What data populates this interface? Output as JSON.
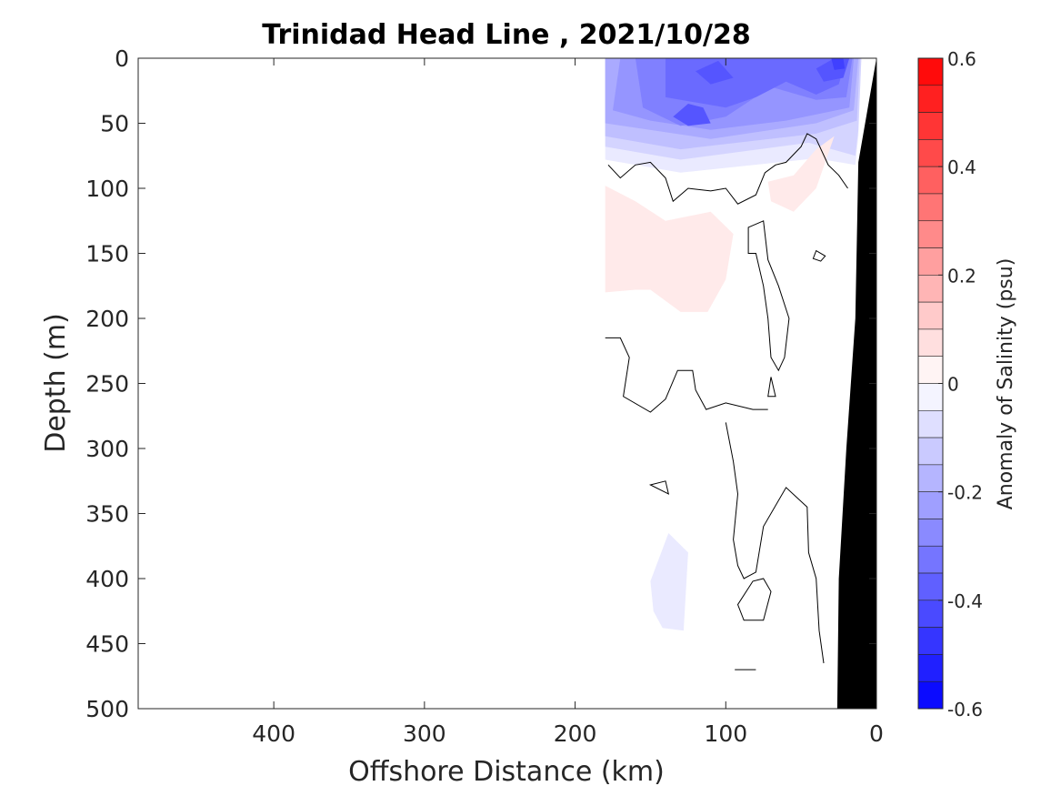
{
  "chart_data": {
    "type": "heatmap",
    "subtype": "filled-contour-section",
    "title": "Trinidad Head Line , 2021/10/28",
    "xlabel": "Offshore Distance (km)",
    "ylabel": "Depth (m)",
    "xlim": [
      490,
      0
    ],
    "ylim": [
      500,
      0
    ],
    "x_reversed": true,
    "y_reversed": true,
    "xticks": [
      400,
      300,
      200,
      100,
      0
    ],
    "xtick_labels": [
      "400",
      "300",
      "200",
      "100",
      "0"
    ],
    "yticks": [
      0,
      50,
      100,
      150,
      200,
      250,
      300,
      350,
      400,
      450,
      500
    ],
    "ytick_labels": [
      "0",
      "50",
      "100",
      "150",
      "200",
      "250",
      "300",
      "350",
      "400",
      "450",
      "500"
    ],
    "colorbar": {
      "label": "Anomaly of Salinity (psu)",
      "lim": [
        -0.6,
        0.6
      ],
      "step": 0.05,
      "ticks": [
        0.6,
        0.4,
        0.2,
        0,
        -0.2,
        -0.4,
        -0.6
      ],
      "tick_labels": [
        "0.6",
        "0.4",
        "0.2",
        "0",
        "-0.2",
        "-0.4",
        "-0.6"
      ],
      "colormap": "blue-white-red"
    },
    "data_extent_km": [
      0,
      180
    ],
    "bathymetry": [
      [
        0,
        0
      ],
      [
        12,
        80
      ],
      [
        14,
        200
      ],
      [
        20,
        300
      ],
      [
        25,
        400
      ],
      [
        26,
        500
      ],
      [
        0,
        500
      ]
    ],
    "regions": [
      {
        "level": -0.05,
        "pts": [
          [
            180,
            0
          ],
          [
            10,
            0
          ],
          [
            12,
            60
          ],
          [
            14,
            82
          ],
          [
            40,
            77
          ],
          [
            130,
            88
          ],
          [
            180,
            78
          ]
        ]
      },
      {
        "level": -0.1,
        "pts": [
          [
            180,
            0
          ],
          [
            10,
            0
          ],
          [
            12,
            55
          ],
          [
            14,
            75
          ],
          [
            45,
            65
          ],
          [
            130,
            78
          ],
          [
            180,
            68
          ]
        ]
      },
      {
        "level": -0.15,
        "pts": [
          [
            180,
            0
          ],
          [
            11,
            0
          ],
          [
            13,
            48
          ],
          [
            40,
            58
          ],
          [
            130,
            70
          ],
          [
            180,
            60
          ]
        ]
      },
      {
        "level": -0.2,
        "pts": [
          [
            180,
            0
          ],
          [
            12,
            0
          ],
          [
            15,
            40
          ],
          [
            40,
            50
          ],
          [
            110,
            62
          ],
          [
            180,
            50
          ]
        ]
      },
      {
        "level": -0.25,
        "pts": [
          [
            170,
            0
          ],
          [
            15,
            0
          ],
          [
            18,
            38
          ],
          [
            60,
            48
          ],
          [
            110,
            55
          ],
          [
            150,
            48
          ],
          [
            175,
            40
          ]
        ]
      },
      {
        "level": -0.3,
        "pts": [
          [
            160,
            0
          ],
          [
            16,
            0
          ],
          [
            20,
            30
          ],
          [
            40,
            32
          ],
          [
            70,
            22
          ],
          [
            100,
            45
          ],
          [
            130,
            52
          ],
          [
            155,
            38
          ]
        ]
      },
      {
        "level": -0.35,
        "pts": [
          [
            140,
            0
          ],
          [
            20,
            0
          ],
          [
            25,
            20
          ],
          [
            40,
            28
          ],
          [
            60,
            18
          ],
          [
            80,
            30
          ],
          [
            100,
            38
          ],
          [
            140,
            30
          ]
        ]
      },
      {
        "level": -0.4,
        "pts": [
          [
            135,
            45
          ],
          [
            125,
            35
          ],
          [
            115,
            38
          ],
          [
            110,
            50
          ],
          [
            125,
            52
          ]
        ]
      },
      {
        "level": -0.4,
        "pts": [
          [
            120,
            10
          ],
          [
            105,
            2
          ],
          [
            95,
            15
          ],
          [
            110,
            20
          ]
        ]
      },
      {
        "level": -0.4,
        "pts": [
          [
            40,
            8
          ],
          [
            28,
            0
          ],
          [
            18,
            0
          ],
          [
            22,
            15
          ],
          [
            35,
            18
          ]
        ]
      },
      {
        "level": -0.45,
        "pts": [
          [
            30,
            0
          ],
          [
            22,
            0
          ],
          [
            21,
            8
          ],
          [
            28,
            9
          ]
        ]
      },
      {
        "level": -0.05,
        "pts": [
          [
            150,
            402
          ],
          [
            138,
            365
          ],
          [
            125,
            380
          ],
          [
            128,
            440
          ],
          [
            142,
            438
          ],
          [
            148,
            425
          ]
        ]
      },
      {
        "level": 0.05,
        "pts": [
          [
            180,
            98
          ],
          [
            160,
            110
          ],
          [
            140,
            125
          ],
          [
            110,
            118
          ],
          [
            95,
            135
          ],
          [
            100,
            170
          ],
          [
            112,
            195
          ],
          [
            130,
            195
          ],
          [
            150,
            178
          ],
          [
            160,
            178
          ],
          [
            180,
            180
          ]
        ]
      },
      {
        "level": 0.05,
        "pts": [
          [
            72,
            95
          ],
          [
            70,
            110
          ],
          [
            55,
            118
          ],
          [
            40,
            100
          ],
          [
            28,
            60
          ],
          [
            40,
            70
          ],
          [
            55,
            90
          ]
        ]
      }
    ],
    "zero_contours": [
      {
        "closed": false,
        "pts": [
          [
            178,
            82
          ],
          [
            170,
            92
          ],
          [
            160,
            82
          ],
          [
            150,
            80
          ],
          [
            140,
            92
          ],
          [
            135,
            110
          ],
          [
            125,
            100
          ],
          [
            110,
            102
          ],
          [
            100,
            100
          ],
          [
            92,
            112
          ],
          [
            80,
            105
          ],
          [
            74,
            88
          ],
          [
            67,
            82
          ],
          [
            60,
            80
          ],
          [
            50,
            68
          ],
          [
            46,
            58
          ],
          [
            40,
            62
          ],
          [
            32,
            82
          ],
          [
            25,
            90
          ],
          [
            19,
            100
          ]
        ]
      },
      {
        "closed": true,
        "pts": [
          [
            85,
            130
          ],
          [
            75,
            125
          ],
          [
            72,
            155
          ],
          [
            65,
            175
          ],
          [
            58,
            200
          ],
          [
            61,
            230
          ],
          [
            65,
            240
          ],
          [
            70,
            230
          ],
          [
            72,
            200
          ],
          [
            75,
            175
          ],
          [
            80,
            150
          ],
          [
            85,
            150
          ]
        ]
      },
      {
        "closed": false,
        "pts": [
          [
            180,
            215
          ],
          [
            170,
            215
          ],
          [
            164,
            230
          ],
          [
            168,
            260
          ],
          [
            150,
            272
          ],
          [
            140,
            262
          ],
          [
            132,
            240
          ],
          [
            122,
            240
          ],
          [
            120,
            255
          ],
          [
            113,
            270
          ],
          [
            100,
            265
          ],
          [
            82,
            270
          ],
          [
            72,
            270
          ]
        ]
      },
      {
        "closed": true,
        "pts": [
          [
            72,
            260
          ],
          [
            70,
            245
          ],
          [
            67,
            260
          ]
        ]
      },
      {
        "closed": true,
        "pts": [
          [
            40,
            148
          ],
          [
            34,
            152
          ],
          [
            37,
            156
          ],
          [
            42,
            154
          ]
        ]
      },
      {
        "closed": false,
        "pts": [
          [
            100,
            280
          ],
          [
            95,
            310
          ],
          [
            92,
            335
          ],
          [
            95,
            370
          ],
          [
            92,
            390
          ],
          [
            88,
            400
          ],
          [
            80,
            395
          ],
          [
            75,
            360
          ],
          [
            60,
            330
          ],
          [
            46,
            345
          ],
          [
            45,
            380
          ],
          [
            40,
            400
          ],
          [
            38,
            440
          ],
          [
            35,
            465
          ]
        ]
      },
      {
        "closed": true,
        "pts": [
          [
            150,
            328
          ],
          [
            140,
            325
          ],
          [
            138,
            335
          ]
        ]
      },
      {
        "closed": true,
        "pts": [
          [
            82,
            402
          ],
          [
            92,
            420
          ],
          [
            88,
            432
          ],
          [
            75,
            432
          ],
          [
            70,
            410
          ],
          [
            75,
            400
          ]
        ]
      },
      {
        "closed": false,
        "pts": [
          [
            94,
            470
          ],
          [
            80,
            470
          ]
        ]
      }
    ]
  }
}
